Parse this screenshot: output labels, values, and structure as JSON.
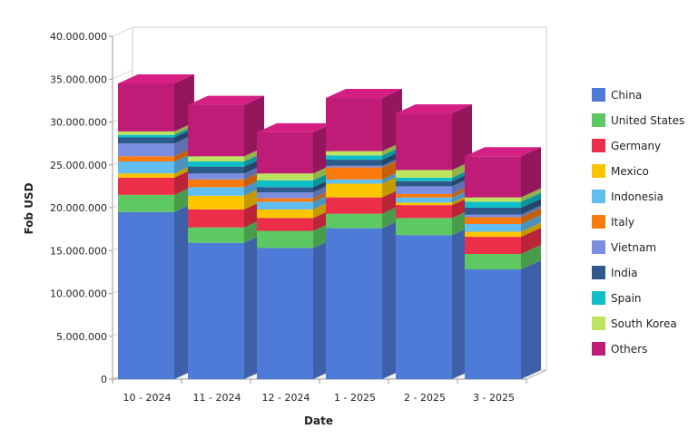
{
  "chart_data": {
    "type": "bar",
    "stacked": true,
    "style": "3d",
    "xlabel": "Date",
    "ylabel": "Fob USD",
    "ylim": [
      0,
      40000000
    ],
    "yticks": [
      0,
      5000000,
      10000000,
      15000000,
      20000000,
      25000000,
      30000000,
      35000000,
      40000000
    ],
    "ytick_labels": [
      "0",
      "5.000.000",
      "10.000.000",
      "15.000.000",
      "20.000.000",
      "25.000.000",
      "30.000.000",
      "35.000.000",
      "40.000.000"
    ],
    "categories": [
      "10 - 2024",
      "11 - 2024",
      "12 - 2024",
      "1 - 2025",
      "2 - 2025",
      "3 - 2025"
    ],
    "legend_position": "right",
    "grid": false,
    "series": [
      {
        "name": "China",
        "color": "#4f7bd8",
        "values": [
          19500000,
          15900000,
          15300000,
          17600000,
          16800000,
          12800000
        ]
      },
      {
        "name": "United States",
        "color": "#5ec862",
        "values": [
          2000000,
          1800000,
          2000000,
          1700000,
          2000000,
          1800000
        ]
      },
      {
        "name": "Germany",
        "color": "#ec2e48",
        "values": [
          2000000,
          2100000,
          1500000,
          1900000,
          1500000,
          2000000
        ]
      },
      {
        "name": "Mexico",
        "color": "#fdc500",
        "values": [
          500000,
          1600000,
          1000000,
          1600000,
          300000,
          600000
        ]
      },
      {
        "name": "Indonesia",
        "color": "#62bdf0",
        "values": [
          1400000,
          1000000,
          900000,
          500000,
          600000,
          900000
        ]
      },
      {
        "name": "Italy",
        "color": "#fb7a0e",
        "values": [
          600000,
          900000,
          400000,
          1400000,
          400000,
          800000
        ]
      },
      {
        "name": "Vietnam",
        "color": "#7b8ee0",
        "values": [
          1500000,
          700000,
          700000,
          200000,
          900000,
          300000
        ]
      },
      {
        "name": "India",
        "color": "#2d5a8a",
        "values": [
          700000,
          800000,
          600000,
          700000,
          600000,
          800000
        ]
      },
      {
        "name": "Spain",
        "color": "#10bec8",
        "values": [
          300000,
          600000,
          800000,
          500000,
          400000,
          700000
        ]
      },
      {
        "name": "South Korea",
        "color": "#bce45e",
        "values": [
          400000,
          600000,
          800000,
          500000,
          900000,
          500000
        ]
      },
      {
        "name": "Others",
        "color": "#be1c77",
        "values": [
          5600000,
          6000000,
          4800000,
          6200000,
          6600000,
          4800000
        ]
      }
    ]
  }
}
